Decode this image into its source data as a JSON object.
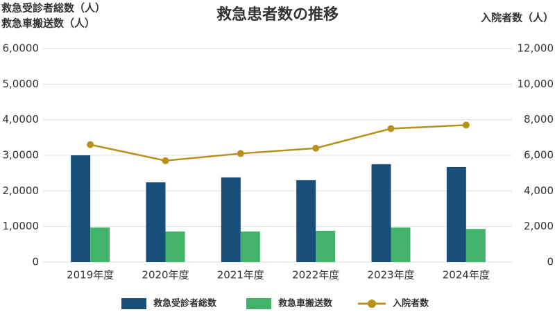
{
  "chart_data": {
    "type": "bar-line",
    "title": "救急患者数の推移",
    "y_label_lines": [
      "救急受診者総数（人）",
      "救急車搬送数（人）"
    ],
    "y2_label": "入院者数（人）",
    "categories": [
      "2019年度",
      "2020年度",
      "2021年度",
      "2022年度",
      "2023年度",
      "2024年度"
    ],
    "series": [
      {
        "name": "救急受診者総数",
        "color": "#174e7a",
        "type": "bar",
        "values": [
          30000,
          22400,
          23800,
          23000,
          27500,
          26700
        ]
      },
      {
        "name": "救急車搬送数",
        "color": "#42b46a",
        "type": "bar",
        "values": [
          9700,
          8600,
          8600,
          8800,
          9700,
          9300
        ]
      },
      {
        "name": "入院者数",
        "color": "#b8901c",
        "type": "line",
        "axis": "y2",
        "values": [
          6600,
          5700,
          6100,
          6400,
          7500,
          7700
        ]
      }
    ],
    "ylim": [
      0,
      60000
    ],
    "yticks": [
      0,
      {
        "value": 10000,
        "label": "1,0000"
      },
      {
        "value": 20000,
        "label": "2,0000"
      },
      {
        "value": 30000,
        "label": "3,0000"
      },
      {
        "value": 40000,
        "label": "4,0000"
      },
      {
        "value": 50000,
        "label": "5,0000"
      },
      {
        "value": 60000,
        "label": "6,0000"
      }
    ],
    "y2lim": [
      0,
      12000
    ],
    "y2ticks": [
      0,
      {
        "value": 2000,
        "label": "2,000"
      },
      {
        "value": 4000,
        "label": "4,000"
      },
      {
        "value": 6000,
        "label": "6,000"
      },
      {
        "value": 8000,
        "label": "8,000"
      },
      {
        "value": 10000,
        "label": "10,000"
      },
      {
        "value": 12000,
        "label": "12,000"
      }
    ],
    "grid": true
  }
}
